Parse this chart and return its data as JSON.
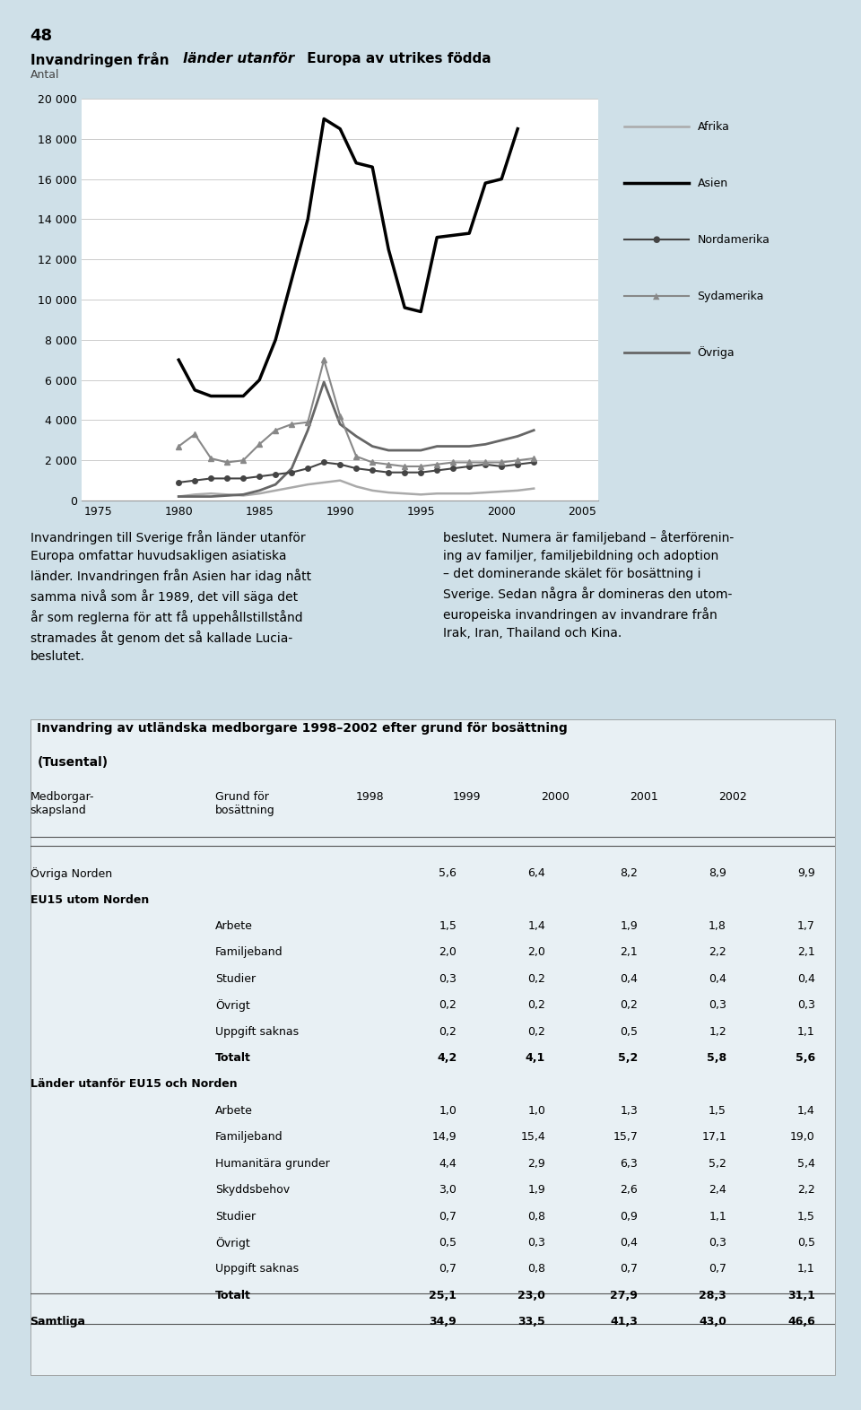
{
  "page_number": "48",
  "background_color": "#cfe0e8",
  "plot_bg_color": "#ffffff",
  "years_chart": [
    1975,
    1976,
    1977,
    1978,
    1979,
    1980,
    1981,
    1982,
    1983,
    1984,
    1985,
    1986,
    1987,
    1988,
    1989,
    1990,
    1991,
    1992,
    1993,
    1994,
    1995,
    1996,
    1997,
    1998,
    1999,
    2000,
    2001,
    2002
  ],
  "afrika": [
    null,
    null,
    null,
    null,
    null,
    200,
    300,
    350,
    300,
    250,
    350,
    500,
    650,
    800,
    900,
    1000,
    700,
    500,
    400,
    350,
    300,
    350,
    350,
    350,
    400,
    450,
    500,
    600
  ],
  "asien": [
    null,
    null,
    null,
    null,
    null,
    7000,
    5500,
    5200,
    5200,
    5200,
    6000,
    8000,
    11000,
    14000,
    19000,
    18500,
    16800,
    16600,
    12500,
    9600,
    9400,
    13100,
    13200,
    13300,
    15800,
    16000,
    18500,
    null
  ],
  "nordamerika": [
    null,
    null,
    null,
    null,
    null,
    900,
    1000,
    1100,
    1100,
    1100,
    1200,
    1300,
    1400,
    1600,
    1900,
    1800,
    1600,
    1500,
    1400,
    1400,
    1400,
    1500,
    1600,
    1700,
    1800,
    1700,
    1800,
    1900
  ],
  "sydamerika": [
    null,
    null,
    null,
    null,
    null,
    2700,
    3300,
    2100,
    1900,
    2000,
    2800,
    3500,
    3800,
    3900,
    7000,
    4200,
    2200,
    1900,
    1800,
    1700,
    1700,
    1800,
    1900,
    1900,
    1900,
    1900,
    2000,
    2100
  ],
  "ovriga": [
    null,
    null,
    null,
    null,
    null,
    200,
    200,
    200,
    250,
    300,
    500,
    800,
    1600,
    3500,
    5900,
    3800,
    3200,
    2700,
    2500,
    2500,
    2500,
    2700,
    2700,
    2700,
    2800,
    3000,
    3200,
    3500
  ],
  "yticks": [
    0,
    2000,
    4000,
    6000,
    8000,
    10000,
    12000,
    14000,
    16000,
    18000,
    20000
  ],
  "ytick_labels": [
    "0",
    "2 000",
    "4 000",
    "6 000",
    "8 000",
    "10 000",
    "12 000",
    "14 000",
    "16 000",
    "18 000",
    "20 000"
  ],
  "xticks": [
    1975,
    1980,
    1985,
    1990,
    1995,
    2000,
    2005
  ],
  "legend_entries": [
    "Afrika",
    "Asien",
    "Nordamerika",
    "Sydamerika",
    "Övriga"
  ],
  "table_title": "Invandring av utländska medborgare 1998–2002 efter grund för bosättning",
  "table_subtitle": "(Tusental)",
  "table_rows": [
    [
      "Övriga Norden",
      "",
      "5,6",
      "6,4",
      "8,2",
      "8,9",
      "9,9"
    ],
    [
      "EU15 utom Norden",
      "",
      "",
      "",
      "",
      "",
      ""
    ],
    [
      "",
      "Arbete",
      "1,5",
      "1,4",
      "1,9",
      "1,8",
      "1,7"
    ],
    [
      "",
      "Familjeband",
      "2,0",
      "2,0",
      "2,1",
      "2,2",
      "2,1"
    ],
    [
      "",
      "Studier",
      "0,3",
      "0,2",
      "0,4",
      "0,4",
      "0,4"
    ],
    [
      "",
      "Övrigt",
      "0,2",
      "0,2",
      "0,2",
      "0,3",
      "0,3"
    ],
    [
      "",
      "Uppgift saknas",
      "0,2",
      "0,2",
      "0,5",
      "1,2",
      "1,1"
    ],
    [
      "",
      "Totalt",
      "4,2",
      "4,1",
      "5,2",
      "5,8",
      "5,6"
    ],
    [
      "Länder utanför EU15 och Norden",
      "",
      "",
      "",
      "",
      "",
      ""
    ],
    [
      "",
      "Arbete",
      "1,0",
      "1,0",
      "1,3",
      "1,5",
      "1,4"
    ],
    [
      "",
      "Familjeband",
      "14,9",
      "15,4",
      "15,7",
      "17,1",
      "19,0"
    ],
    [
      "",
      "Humanitära grunder",
      "4,4",
      "2,9",
      "6,3",
      "5,2",
      "5,4"
    ],
    [
      "",
      "Skyddsbehov",
      "3,0",
      "1,9",
      "2,6",
      "2,4",
      "2,2"
    ],
    [
      "",
      "Studier",
      "0,7",
      "0,8",
      "0,9",
      "1,1",
      "1,5"
    ],
    [
      "",
      "Övrigt",
      "0,5",
      "0,3",
      "0,4",
      "0,3",
      "0,5"
    ],
    [
      "",
      "Uppgift saknas",
      "0,7",
      "0,8",
      "0,7",
      "0,7",
      "1,1"
    ],
    [
      "",
      "Totalt",
      "25,1",
      "23,0",
      "27,9",
      "28,3",
      "31,1"
    ],
    [
      "Samtliga",
      "",
      "34,9",
      "33,5",
      "41,3",
      "43,0",
      "46,6"
    ]
  ],
  "left_text": "Invandringen till Sverige från länder utanför\nEuropa omfattar huvudsakligen asiatiska\nländer. Invandringen från Asien har idag nått\nsamma nivå som år 1989, det vill säga det\når som reglerna för att få uppehållstillstånd\nstramades åt genom det så kallade Lucia-\nbeslutet.",
  "right_text": "beslutet. Numera är familjeband – återförenin-\ning av familjer, familjebildning och adoption\n– det dominerande skälet för bosättning i\nSverige. Sedan några år domineras den utom-\neuropeiska invandringen av invandrare från\nIrak, Iran, Thailand och Kina."
}
